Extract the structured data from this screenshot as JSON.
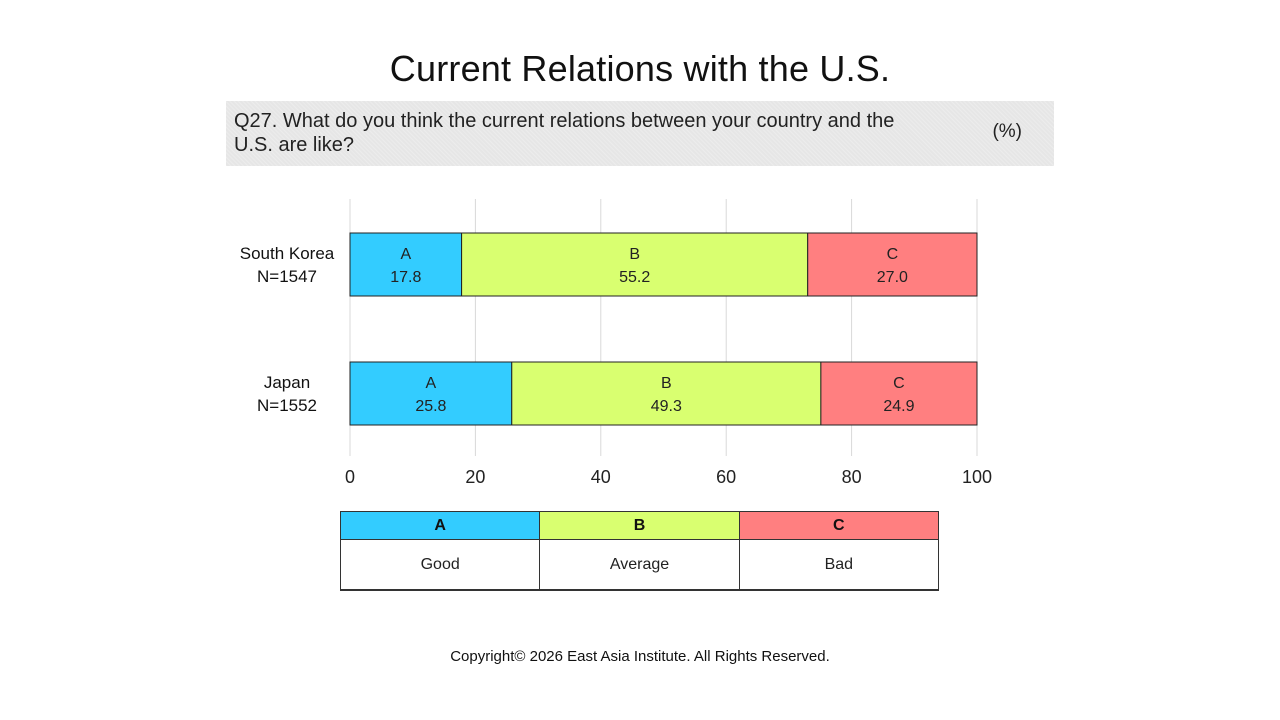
{
  "page": {
    "title": "Current Relations with the U.S.",
    "question": "Q27. What do you think the current relations between your country and the U.S. are like?",
    "unit": "(%)",
    "copyright": "Copyright© 2026 East Asia Institute. All Rights Reserved."
  },
  "chart_data": {
    "type": "bar",
    "orientation": "horizontal",
    "stacked": true,
    "categories": [
      {
        "name": "South Korea",
        "n": "N=1547"
      },
      {
        "name": "Japan",
        "n": "N=1552"
      }
    ],
    "series": [
      {
        "name": "A",
        "label": "Good",
        "color": "#33ccff",
        "values": [
          17.8,
          25.8
        ]
      },
      {
        "name": "B",
        "label": "Average",
        "color": "#d9ff70",
        "values": [
          55.2,
          49.3
        ]
      },
      {
        "name": "C",
        "label": "Bad",
        "color": "#ff7f80",
        "values": [
          27.0,
          24.9
        ]
      }
    ],
    "xlim": [
      0,
      100
    ],
    "xticks": [
      0,
      20,
      40,
      60,
      80,
      100
    ],
    "grid": true,
    "legend_position": "bottom"
  },
  "legend": {
    "headers": [
      "A",
      "B",
      "C"
    ],
    "labels": [
      "Good",
      "Average",
      "Bad"
    ]
  }
}
